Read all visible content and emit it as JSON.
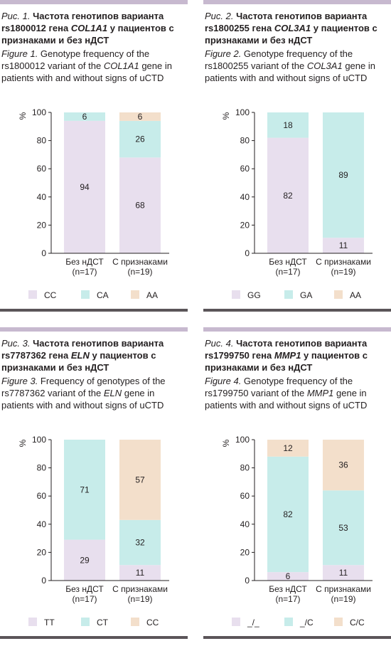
{
  "colors": {
    "top_bar": "#c7b9cf",
    "bottom_bar": "#5b5559",
    "lilac": "#e8dfee",
    "cyan": "#c7ecea",
    "beige": "#f3dfcb",
    "axis": "#231f20"
  },
  "chart_data": [
    {
      "type": "bar",
      "stacked": true,
      "caption_ru_label": "Рис. 1.",
      "caption_ru_pre": "Частота генотипов варианта rs1800012 гена ",
      "caption_ru_gene": "COL1A1",
      "caption_ru_post": " у пациентов с признаками и без нДСТ",
      "caption_en_label": "Figure 1.",
      "caption_en_pre": " Genotype frequency of the rs1800012 variant of the ",
      "caption_en_gene": "COL1A1",
      "caption_en_post": " gene in patients with and without signs of uCTD",
      "ylabel": "%",
      "ylim": [
        0,
        100
      ],
      "yticks": [
        "0",
        "20",
        "40",
        "60",
        "80",
        "100"
      ],
      "categories": [
        [
          "Без нДСТ",
          "(n=17)"
        ],
        [
          "С признаками",
          "(n=19)"
        ]
      ],
      "series": [
        {
          "name": "CC",
          "color": "#e8dfee",
          "values": [
            94,
            68
          ]
        },
        {
          "name": "CA",
          "color": "#c7ecea",
          "values": [
            6,
            26
          ]
        },
        {
          "name": "AA",
          "color": "#f3dfcb",
          "values": [
            0,
            6
          ]
        }
      ]
    },
    {
      "type": "bar",
      "stacked": true,
      "caption_ru_label": "Рис. 2.",
      "caption_ru_pre": "Частота генотипов варианта rs1800255 гена ",
      "caption_ru_gene": "COL3A1",
      "caption_ru_post": " у пациентов с признаками и без нДСТ",
      "caption_en_label": "Figure 2.",
      "caption_en_pre": " Genotype frequency of the rs1800255 variant of the ",
      "caption_en_gene": "COL3A1",
      "caption_en_post": " gene in patients with and without signs of uCTD",
      "ylabel": "%",
      "ylim": [
        0,
        100
      ],
      "yticks": [
        "0",
        "20",
        "40",
        "60",
        "80",
        "100"
      ],
      "categories": [
        [
          "Без нДСТ",
          "(n=17)"
        ],
        [
          "С признаками",
          "(n=19)"
        ]
      ],
      "series": [
        {
          "name": "GG",
          "color": "#e8dfee",
          "values": [
            82,
            11
          ]
        },
        {
          "name": "GA",
          "color": "#c7ecea",
          "values": [
            18,
            89
          ]
        },
        {
          "name": "AA",
          "color": "#f3dfcb",
          "values": [
            0,
            0
          ]
        }
      ]
    },
    {
      "type": "bar",
      "stacked": true,
      "caption_ru_label": "Рис. 3.",
      "caption_ru_pre": "Частота генотипов варианта rs7787362 гена ",
      "caption_ru_gene": "ELN",
      "caption_ru_post": " у пациентов с признаками и без нДСТ",
      "caption_en_label": "Figure 3.",
      "caption_en_pre": " Frequency of genotypes of the rs7787362 variant of the ",
      "caption_en_gene": "ELN",
      "caption_en_post": " gene in patients with and without signs of uCTD",
      "ylabel": "%",
      "ylim": [
        0,
        100
      ],
      "yticks": [
        "0",
        "20",
        "40",
        "60",
        "80",
        "100"
      ],
      "categories": [
        [
          "Без нДСТ",
          "(n=17)"
        ],
        [
          "С признаками",
          "(n=19)"
        ]
      ],
      "series": [
        {
          "name": "TT",
          "color": "#e8dfee",
          "values": [
            29,
            11
          ]
        },
        {
          "name": "CT",
          "color": "#c7ecea",
          "values": [
            71,
            32
          ]
        },
        {
          "name": "CC",
          "color": "#f3dfcb",
          "values": [
            0,
            57
          ]
        }
      ]
    },
    {
      "type": "bar",
      "stacked": true,
      "caption_ru_label": "Рис. 4.",
      "caption_ru_pre": "Частота генотипов варианта rs1799750 гена ",
      "caption_ru_gene": "MMP1",
      "caption_ru_post": " у пациентов с признаками и без нДСТ",
      "caption_en_label": "Figure 4.",
      "caption_en_pre": " Genotype frequency of the rs1799750 variant of the ",
      "caption_en_gene": "MMP1",
      "caption_en_post": " gene in patients with and without signs of uCTD",
      "ylabel": "%",
      "ylim": [
        0,
        100
      ],
      "yticks": [
        "0",
        "20",
        "40",
        "60",
        "80",
        "100"
      ],
      "categories": [
        [
          "Без нДСТ",
          "(n=17)"
        ],
        [
          "С признаками",
          "(n=19)"
        ]
      ],
      "series": [
        {
          "name": "_/_",
          "color": "#e8dfee",
          "values": [
            6,
            11
          ]
        },
        {
          "name": "_/C",
          "color": "#c7ecea",
          "values": [
            82,
            53
          ]
        },
        {
          "name": "C/C",
          "color": "#f3dfcb",
          "values": [
            12,
            36
          ]
        }
      ]
    }
  ]
}
